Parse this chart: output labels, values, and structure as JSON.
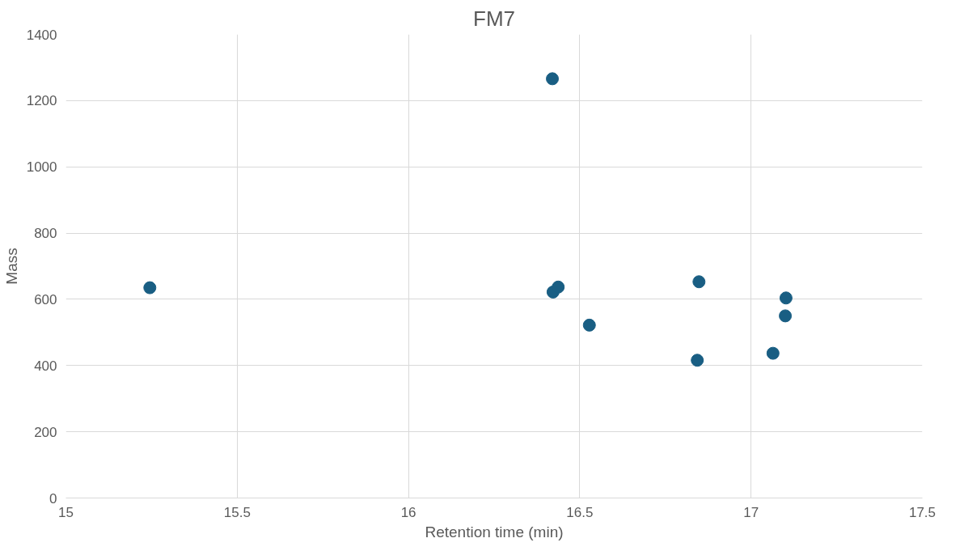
{
  "chart_data": {
    "type": "scatter",
    "title": "FM7",
    "xlabel": "Retention time (min)",
    "ylabel": "Mass",
    "x": [
      15.245,
      16.42,
      16.422,
      16.437,
      16.528,
      16.848,
      16.843,
      17.064,
      17.102,
      17.1
    ],
    "values": [
      635,
      1266,
      622,
      637,
      522,
      653,
      416,
      437,
      604,
      550
    ],
    "color": "#195e83",
    "marker": "circle",
    "grid": true,
    "xlim": [
      15,
      17.5
    ],
    "xticks": [
      15,
      15.5,
      16,
      16.5,
      17,
      17.5
    ],
    "ylim": [
      0,
      1400
    ],
    "yticks": [
      0,
      200,
      400,
      600,
      800,
      1000,
      1200,
      1400
    ]
  }
}
